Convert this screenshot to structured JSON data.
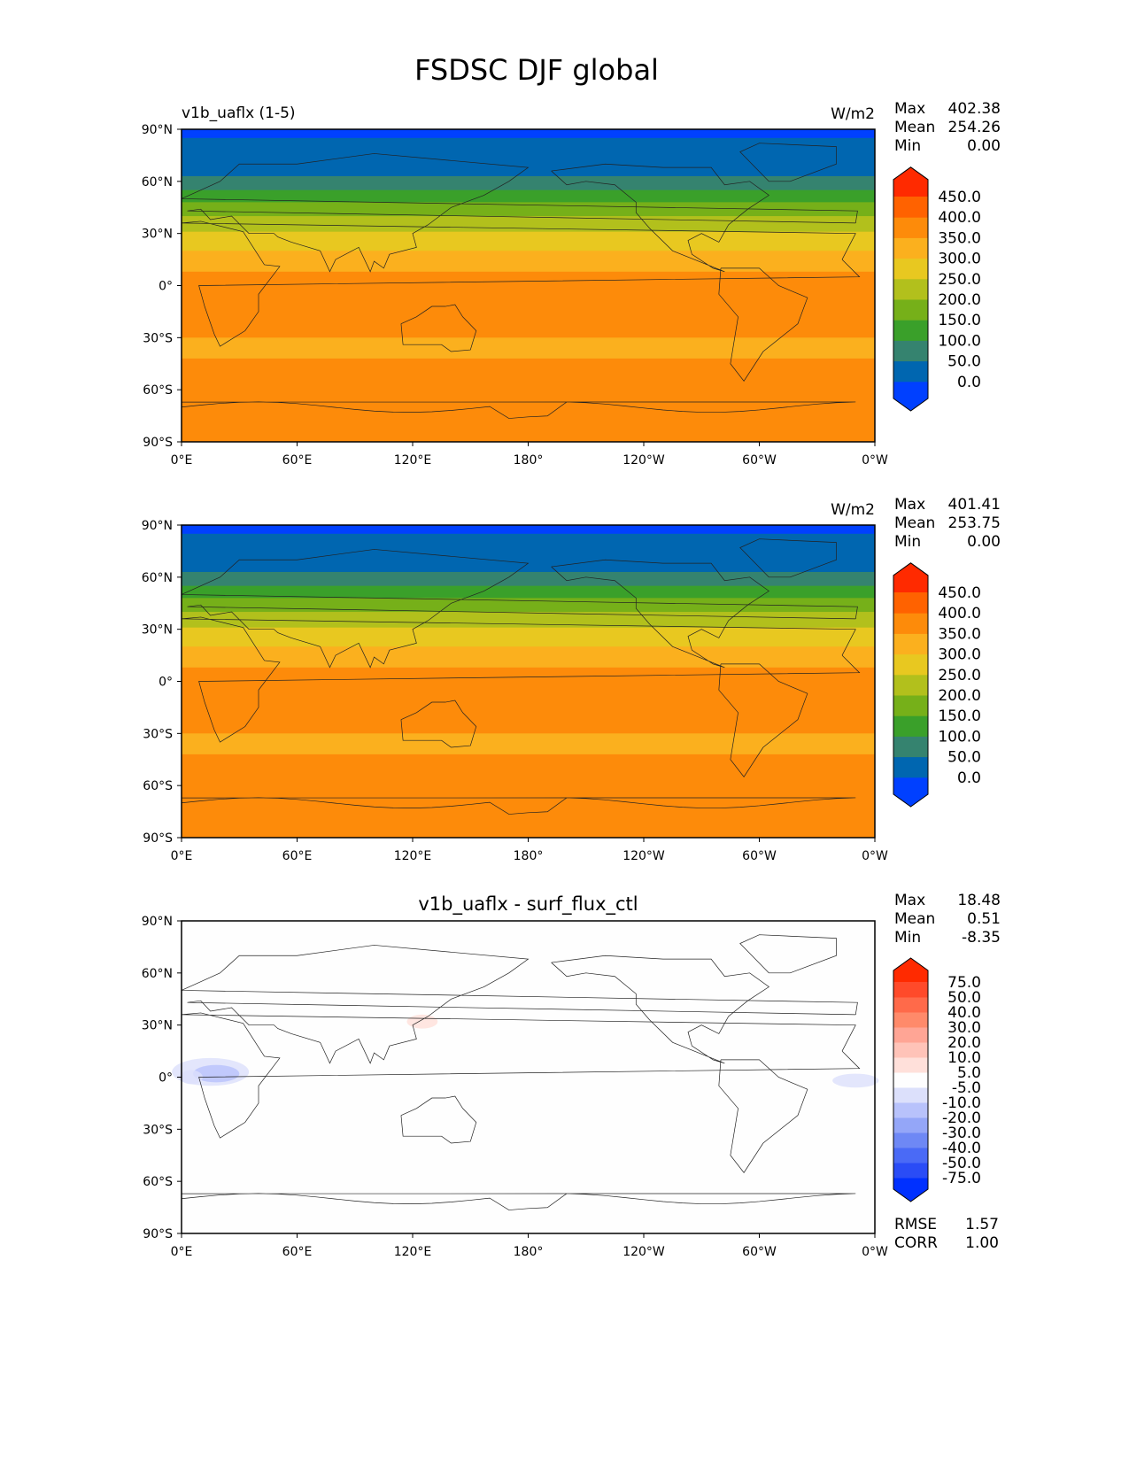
{
  "chart_data": {
    "type": "heatmap",
    "title": "FSDSC DJF global",
    "xticks": [
      "0°E",
      "60°E",
      "120°E",
      "180°",
      "120°W",
      "60°W",
      "0°W"
    ],
    "yticks": [
      "90°N",
      "60°N",
      "30°N",
      "0°",
      "30°S",
      "60°S",
      "90°S"
    ],
    "xlim": [
      0,
      360
    ],
    "ylim": [
      -90,
      90
    ],
    "panels": [
      {
        "left_title": "v1b_uaflx (1-5)",
        "center_title": "",
        "units": "W/m2",
        "stats": [
          {
            "label": "Max",
            "value": "402.38"
          },
          {
            "label": "Mean",
            "value": "254.26"
          },
          {
            "label": "Min",
            "value": "0.00"
          }
        ],
        "colorbar": "abs",
        "zonal_bands": [
          [
            90,
            85,
            0
          ],
          [
            85,
            63,
            1
          ],
          [
            63,
            55,
            2
          ],
          [
            55,
            48,
            3
          ],
          [
            48,
            40,
            4
          ],
          [
            40,
            31,
            5
          ],
          [
            31,
            20,
            6
          ],
          [
            20,
            8,
            7
          ],
          [
            8,
            -30,
            8
          ],
          [
            -30,
            -42,
            7
          ],
          [
            -42,
            -90,
            8
          ]
        ],
        "blobs": []
      },
      {
        "left_title": "",
        "center_title": "",
        "units": "W/m2",
        "stats": [
          {
            "label": "Max",
            "value": "401.41"
          },
          {
            "label": "Mean",
            "value": "253.75"
          },
          {
            "label": "Min",
            "value": "0.00"
          }
        ],
        "colorbar": "abs",
        "zonal_bands": [
          [
            90,
            85,
            0
          ],
          [
            85,
            63,
            1
          ],
          [
            63,
            55,
            2
          ],
          [
            55,
            48,
            3
          ],
          [
            48,
            40,
            4
          ],
          [
            40,
            31,
            5
          ],
          [
            31,
            20,
            6
          ],
          [
            20,
            8,
            7
          ],
          [
            8,
            -30,
            8
          ],
          [
            -30,
            -42,
            7
          ],
          [
            -42,
            -90,
            8
          ]
        ],
        "blobs": []
      },
      {
        "left_title": "",
        "center_title": "v1b_uaflx - surf_flux_ctl",
        "units": "",
        "stats": [
          {
            "label": "Max",
            "value": "18.48"
          },
          {
            "label": "Mean",
            "value": "0.51"
          },
          {
            "label": "Min",
            "value": "-8.35"
          }
        ],
        "colorbar": "diff",
        "zonal_bands": [
          [
            90,
            -90,
            7
          ]
        ],
        "blobs": [
          [
            15,
            3,
            20,
            8,
            6
          ],
          [
            18,
            2,
            12,
            5,
            5
          ],
          [
            125,
            32,
            8,
            4,
            8
          ],
          [
            350,
            -2,
            12,
            4,
            6
          ],
          [
            5,
            0,
            6,
            4,
            6
          ]
        ],
        "footer_stats": [
          {
            "label": "RMSE",
            "value": "1.57"
          },
          {
            "label": "CORR",
            "value": "1.00"
          }
        ]
      }
    ],
    "colorbars": {
      "abs": {
        "levels": [
          "0.0",
          "50.0",
          "100.0",
          "150.0",
          "200.0",
          "250.0",
          "300.0",
          "350.0",
          "400.0",
          "450.0"
        ],
        "colors": [
          "#0040ff",
          "#0066b0",
          "#35836f",
          "#3aa02a",
          "#76b019",
          "#b2c01c",
          "#e8c820",
          "#fbb01e",
          "#fd8b0a",
          "#ff6200",
          "#ff2a00"
        ]
      },
      "diff": {
        "levels": [
          "-75.0",
          "-50.0",
          "-40.0",
          "-30.0",
          "-20.0",
          "-10.0",
          "-5.0",
          "5.0",
          "10.0",
          "20.0",
          "30.0",
          "40.0",
          "50.0",
          "75.0"
        ],
        "colors": [
          "#0030ff",
          "#2a4cf6",
          "#4a6af6",
          "#6e88f5",
          "#94a6f8",
          "#b8c2fb",
          "#dce0fb",
          "#fefefe",
          "#ffe0da",
          "#ffc3b8",
          "#ffa595",
          "#ff8a6a",
          "#ff6a4a",
          "#ff4a2a",
          "#ff2a00"
        ]
      }
    }
  }
}
